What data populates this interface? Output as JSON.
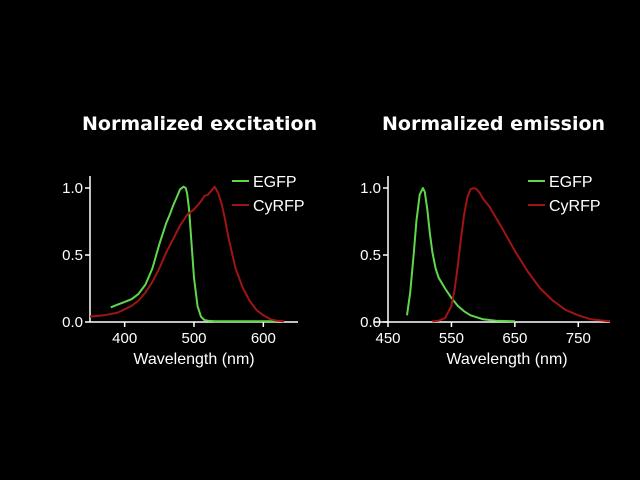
{
  "chart_data": [
    {
      "type": "line",
      "title": "Normalized excitation",
      "xlabel": "Wavelength (nm)",
      "ylabel": "",
      "xlim": [
        350,
        650
      ],
      "ylim": [
        0,
        1.05
      ],
      "xticks": [
        400,
        500,
        600
      ],
      "yticks": [
        0.0,
        0.5,
        1.0
      ],
      "ytick_labels": [
        "0.0",
        "0.5",
        "1.0"
      ],
      "grid": false,
      "legend_position": "top-right",
      "series": [
        {
          "name": "EGFP",
          "color": "#5fd84a",
          "x": [
            380,
            390,
            400,
            410,
            420,
            430,
            440,
            450,
            460,
            465,
            470,
            475,
            480,
            485,
            488,
            490,
            493,
            496,
            500,
            505,
            510,
            515,
            520,
            530,
            550,
            580,
            620
          ],
          "y": [
            0.11,
            0.13,
            0.15,
            0.17,
            0.21,
            0.28,
            0.4,
            0.58,
            0.74,
            0.8,
            0.87,
            0.93,
            0.99,
            1.01,
            1.0,
            0.96,
            0.84,
            0.62,
            0.33,
            0.12,
            0.04,
            0.015,
            0.01,
            0.005,
            0.005,
            0.005,
            0.005
          ]
        },
        {
          "name": "CyRFP",
          "color": "#a01414",
          "x": [
            350,
            370,
            390,
            410,
            420,
            430,
            440,
            450,
            460,
            470,
            480,
            490,
            500,
            505,
            510,
            515,
            520,
            525,
            530,
            535,
            540,
            545,
            550,
            560,
            570,
            580,
            590,
            600,
            610,
            620,
            630
          ],
          "y": [
            0.04,
            0.05,
            0.07,
            0.12,
            0.16,
            0.22,
            0.3,
            0.4,
            0.52,
            0.62,
            0.72,
            0.8,
            0.84,
            0.87,
            0.9,
            0.94,
            0.95,
            0.98,
            1.01,
            0.96,
            0.88,
            0.76,
            0.62,
            0.4,
            0.26,
            0.16,
            0.09,
            0.05,
            0.02,
            0.01,
            0.005
          ]
        }
      ]
    },
    {
      "type": "line",
      "title": "Normalized emission",
      "xlabel": "Wavelength (nm)",
      "ylabel": "",
      "xlim": [
        450,
        800
      ],
      "ylim": [
        0,
        1.05
      ],
      "xticks": [
        450,
        550,
        650,
        750
      ],
      "yticks": [
        0.0,
        0.5,
        1.0
      ],
      "ytick_labels": [
        "0.0",
        "0.5",
        "1.0"
      ],
      "grid": false,
      "legend_position": "top-right",
      "series": [
        {
          "name": "EGFP",
          "color": "#5fd84a",
          "x": [
            480,
            485,
            490,
            495,
            500,
            505,
            508,
            512,
            516,
            520,
            525,
            530,
            540,
            550,
            560,
            570,
            580,
            600,
            620,
            650
          ],
          "y": [
            0.05,
            0.22,
            0.48,
            0.76,
            0.95,
            1.0,
            0.97,
            0.84,
            0.66,
            0.52,
            0.4,
            0.33,
            0.25,
            0.18,
            0.12,
            0.08,
            0.05,
            0.02,
            0.01,
            0.005
          ]
        },
        {
          "name": "CyRFP",
          "color": "#a01414",
          "x": [
            520,
            530,
            540,
            550,
            555,
            560,
            565,
            570,
            575,
            580,
            585,
            590,
            595,
            600,
            610,
            620,
            630,
            650,
            670,
            690,
            710,
            730,
            750,
            770,
            790,
            800
          ],
          "y": [
            0.005,
            0.01,
            0.03,
            0.12,
            0.24,
            0.42,
            0.62,
            0.8,
            0.93,
            0.99,
            1.0,
            0.99,
            0.96,
            0.92,
            0.86,
            0.78,
            0.7,
            0.53,
            0.38,
            0.25,
            0.16,
            0.09,
            0.05,
            0.02,
            0.01,
            0.005
          ]
        }
      ]
    }
  ]
}
